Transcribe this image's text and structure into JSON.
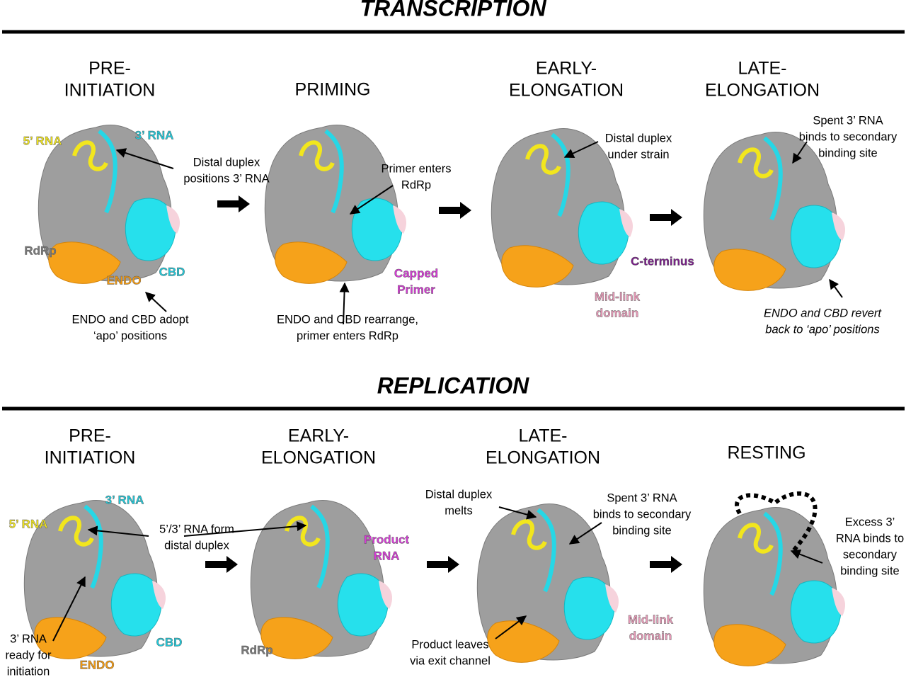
{
  "transcription": {
    "title": "TRANSCRIPTION",
    "stages": [
      [
        "PRE-",
        "INITIATION"
      ],
      [
        "PRIMING"
      ],
      [
        "EARLY-",
        "ELONGATION"
      ],
      [
        "LATE-",
        "ELONGATION"
      ]
    ],
    "labels": [
      [
        "5’ RNA"
      ],
      [
        "3’ RNA"
      ],
      [
        "Distal duplex",
        "positions 3’ RNA"
      ],
      [
        "RdRp"
      ],
      [
        "CBD"
      ],
      [
        "ENDO"
      ],
      [
        "ENDO and CBD adopt",
        "‘apo’ positions"
      ],
      [
        "Primer enters",
        "RdRp"
      ],
      [
        "Capped",
        "Primer"
      ],
      [
        "ENDO and CBD rearrange,",
        "primer enters RdRp"
      ],
      [
        "Distal duplex",
        "under strain"
      ],
      [
        "C-terminus"
      ],
      [
        "Mid-link",
        "domain"
      ],
      [
        "Spent 3’ RNA",
        "binds to secondary",
        "binding site"
      ],
      [
        "ENDO and CBD revert",
        "back to ‘apo’ positions"
      ]
    ]
  },
  "replication": {
    "title": "REPLICATION",
    "stages": [
      [
        "PRE-",
        "INITIATION"
      ],
      [
        "EARLY-",
        "ELONGATION"
      ],
      [
        "LATE-",
        "ELONGATION"
      ],
      [
        "RESTING"
      ]
    ],
    "labels": [
      [
        "3’ RNA"
      ],
      [
        "5’ RNA"
      ],
      [
        "5’/3’ RNA form",
        "distal duplex"
      ],
      [
        "3’ RNA",
        "ready for",
        "initiation"
      ],
      [
        "ENDO"
      ],
      [
        "CBD"
      ],
      [
        "Product",
        "RNA"
      ],
      [
        "RdRp"
      ],
      [
        "Distal duplex",
        "melts"
      ],
      [
        "Spent 3’ RNA",
        "binds to secondary",
        "binding site"
      ],
      [
        "Product leaves",
        "via exit channel"
      ],
      [
        "Mid-link",
        "domain"
      ],
      [
        "Excess 3’",
        "RNA binds to",
        "secondary",
        "binding site"
      ]
    ]
  }
}
